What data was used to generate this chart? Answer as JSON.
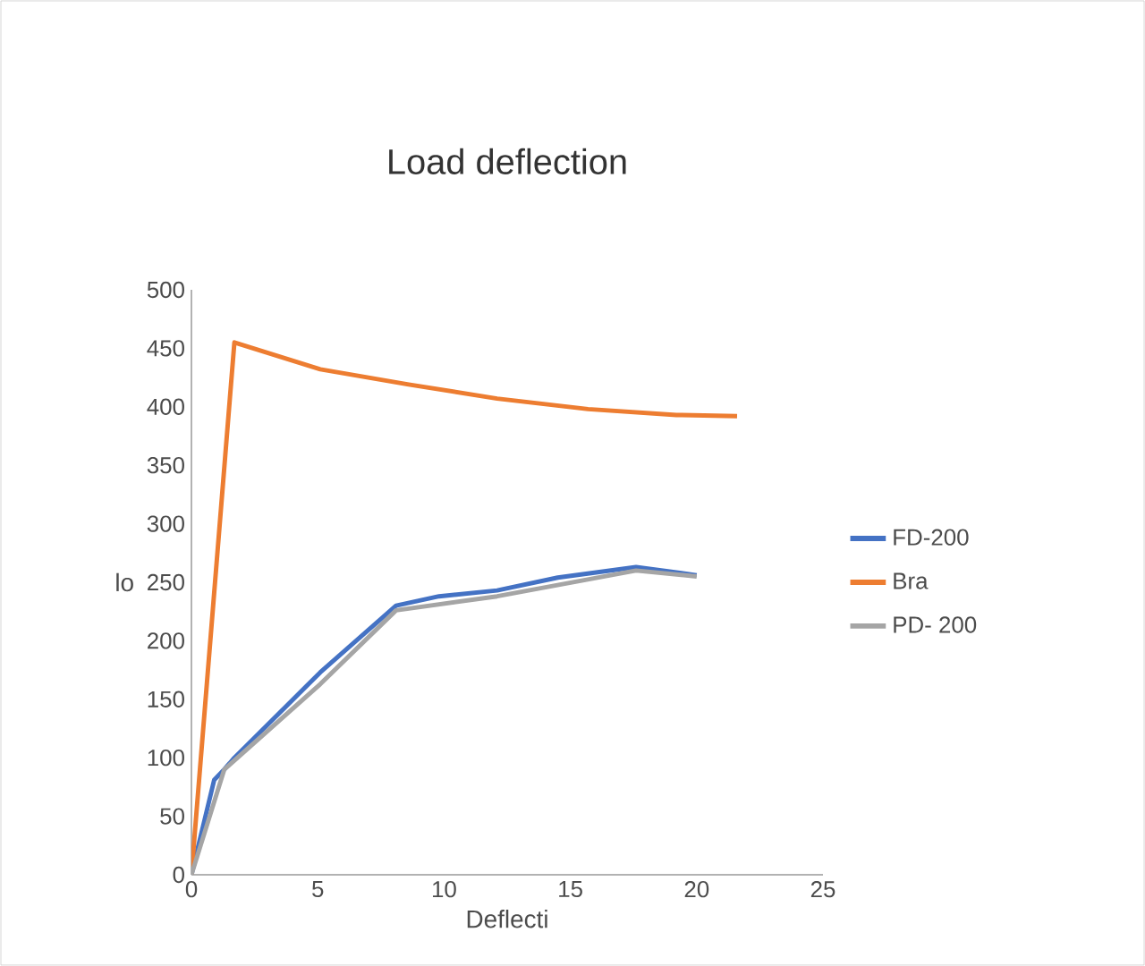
{
  "chart_data": {
    "type": "line",
    "title": "Load deflection",
    "xlabel": "Deflecti",
    "ylabel": "lo",
    "xlim": [
      0,
      25
    ],
    "xticks": [
      0,
      5,
      10,
      15,
      20,
      25
    ],
    "ylim": [
      0,
      500
    ],
    "yticks": [
      0,
      50,
      100,
      150,
      200,
      250,
      300,
      350,
      400,
      450,
      500
    ],
    "grid": false,
    "legend": "right",
    "marker": "none",
    "line_style": "solid",
    "series": [
      {
        "name": "FD-200",
        "color": "#4472c4",
        "x": [
          0,
          0.9,
          1.3,
          1.7,
          5.1,
          8.1,
          9.8,
          12.1,
          14.5,
          17.6,
          20.0
        ],
        "values": [
          0,
          81,
          90,
          100,
          173,
          230,
          238,
          243,
          254,
          263,
          256
        ]
      },
      {
        "name": "Bra",
        "color": "#ed7d31",
        "x": [
          0,
          1.7,
          5.1,
          8.6,
          12.1,
          15.7,
          19.2,
          21.6
        ],
        "values": [
          0,
          455,
          432,
          419,
          407,
          398,
          393,
          392
        ]
      },
      {
        "name": "PD- 200",
        "color": "#a5a5a5",
        "x": [
          0,
          1.3,
          5.1,
          8.1,
          12.1,
          17.6,
          20.0
        ],
        "values": [
          0,
          90,
          163,
          226,
          238,
          260,
          255
        ]
      }
    ]
  }
}
